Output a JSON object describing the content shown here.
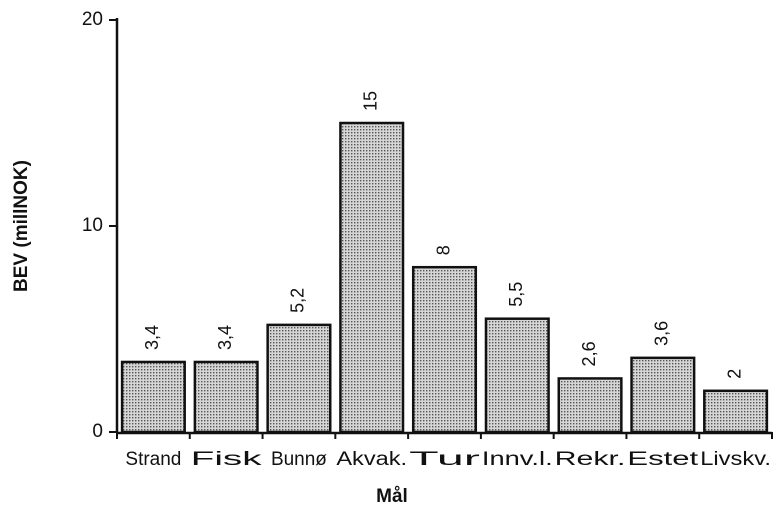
{
  "chart_data": {
    "type": "bar",
    "categories": [
      "Strand",
      "Fisk",
      "Bunnø",
      "Akvak.",
      "Tur",
      "Innv.l.",
      "Rekr.",
      "Estet",
      "Livskv."
    ],
    "values": [
      3.4,
      3.4,
      5.2,
      15,
      8,
      5.5,
      2.6,
      3.6,
      2
    ],
    "value_labels": [
      "3,4",
      "3,4",
      "5,2",
      "15",
      "8",
      "5,5",
      "2,6",
      "3,6",
      "2"
    ],
    "color": "#b4b4b4",
    "xlabel": "Mål",
    "ylabel": "BEV (millNOK)",
    "ylim": [
      0,
      20
    ],
    "yticks": [
      0,
      10,
      20
    ],
    "grid": false
  }
}
